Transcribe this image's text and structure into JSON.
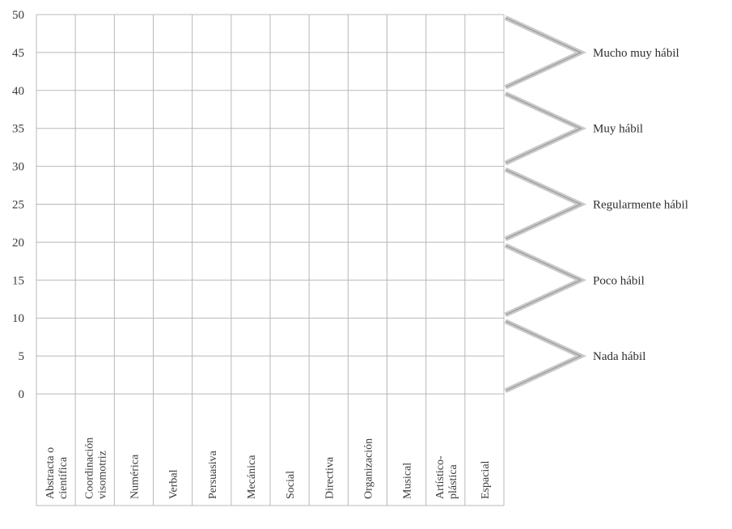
{
  "chart_data": {
    "type": "table",
    "title": "",
    "xlabel": "",
    "ylabel": "",
    "ylim": [
      0,
      50
    ],
    "yticks": [
      0,
      5,
      10,
      15,
      20,
      25,
      30,
      35,
      40,
      45,
      50
    ],
    "categories": [
      [
        "Abstracta o",
        "científica"
      ],
      [
        "Coordinación",
        "visomotriz"
      ],
      [
        "Numérica"
      ],
      [
        "Verbal"
      ],
      [
        "Persuasiva"
      ],
      [
        "Mecánica"
      ],
      [
        "Social"
      ],
      [
        "Directiva"
      ],
      [
        "Organización"
      ],
      [
        "Musical"
      ],
      [
        "Artístico-",
        "plástica"
      ],
      [
        "Espacial"
      ]
    ],
    "bands": [
      {
        "label": "Mucho muy hábil",
        "range": [
          40,
          50
        ]
      },
      {
        "label": "Muy hábil",
        "range": [
          30,
          40
        ]
      },
      {
        "label": "Regularmente hábil",
        "range": [
          20,
          30
        ]
      },
      {
        "label": "Poco hábil",
        "range": [
          10,
          20
        ]
      },
      {
        "label": "Nada hábil",
        "range": [
          0,
          10
        ]
      }
    ],
    "grid": true,
    "colors": {
      "grid": "#b8b8b8",
      "text": "#3a3a3a",
      "bracket": "#c9c9c9",
      "bracket_shadow": "#9a9a9a"
    }
  }
}
